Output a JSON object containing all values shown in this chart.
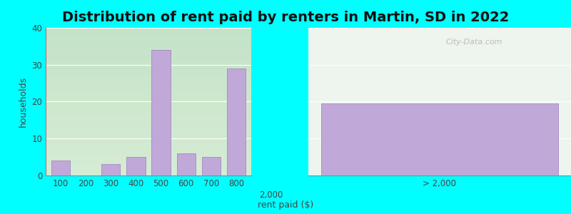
{
  "title": "Distribution of rent paid by renters in Martin, SD in 2022",
  "xlabel": "rent paid ($)",
  "ylabel": "households",
  "background_color": "#00FFFF",
  "plot_bg_left": {
    "top": "#e8f0e0",
    "bottom": "#d0e8d0"
  },
  "plot_bg_right": {
    "top": "#f0f4ee",
    "bottom": "#e8f0e8"
  },
  "bar_color": "#c0a8d8",
  "bar_edge_color": "#a888c0",
  "watermark": "City-Data.com",
  "ylim": [
    0,
    40
  ],
  "yticks": [
    0,
    10,
    20,
    30,
    40
  ],
  "left_bars": {
    "labels": [
      "100",
      "200",
      "300",
      "400",
      "500",
      "600",
      "700",
      "800"
    ],
    "values": [
      4,
      0,
      3,
      5,
      34,
      6,
      5,
      29
    ]
  },
  "right_bar": {
    "label": "> 2,000",
    "value": 19.5
  },
  "mid_tick": "2,000",
  "title_fontsize": 14,
  "axis_label_fontsize": 9,
  "tick_fontsize": 8.5
}
